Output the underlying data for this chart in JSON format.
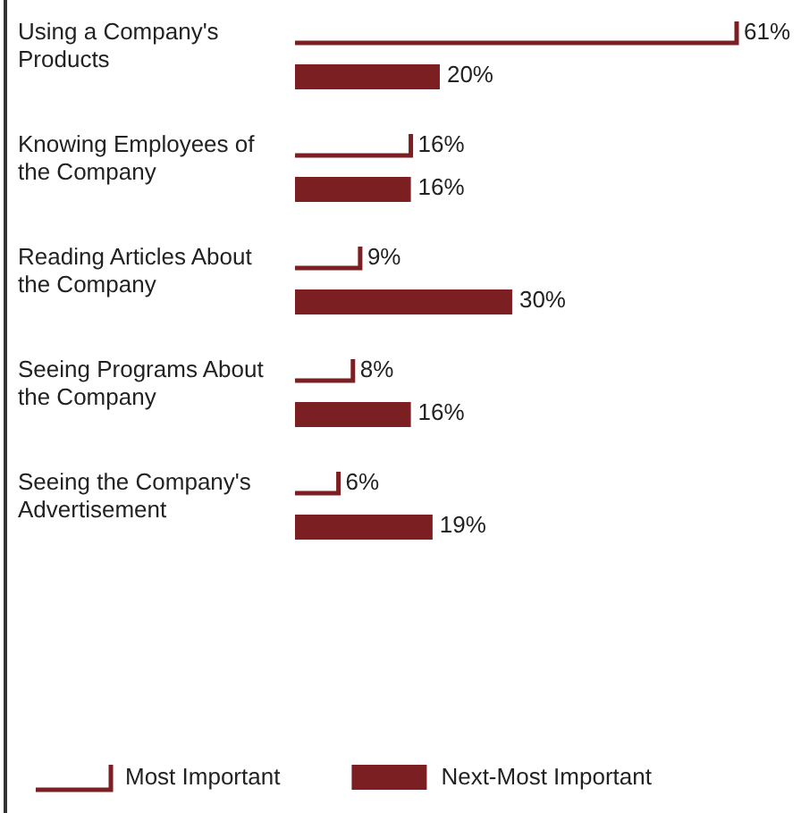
{
  "chart_data": {
    "type": "bar",
    "orientation": "horizontal",
    "categories": [
      "Using a Company's Products",
      "Knowing Employees of the Company",
      "Reading Articles About the Company",
      "Seeing Programs About the Company",
      "Seeing the Company's Advertisement"
    ],
    "series": [
      {
        "name": "Most Important",
        "color": "#7b1f22",
        "values": [
          61,
          16,
          9,
          8,
          6
        ],
        "value_labels": [
          "61%",
          "16%",
          "9%",
          "8%",
          "6%"
        ]
      },
      {
        "name": "Next-Most Important",
        "color": "#7b1f22",
        "values": [
          20,
          16,
          30,
          16,
          19
        ],
        "value_labels": [
          "20%",
          "16%",
          "30%",
          "16%",
          "19%"
        ]
      }
    ],
    "legend": "bottom"
  }
}
